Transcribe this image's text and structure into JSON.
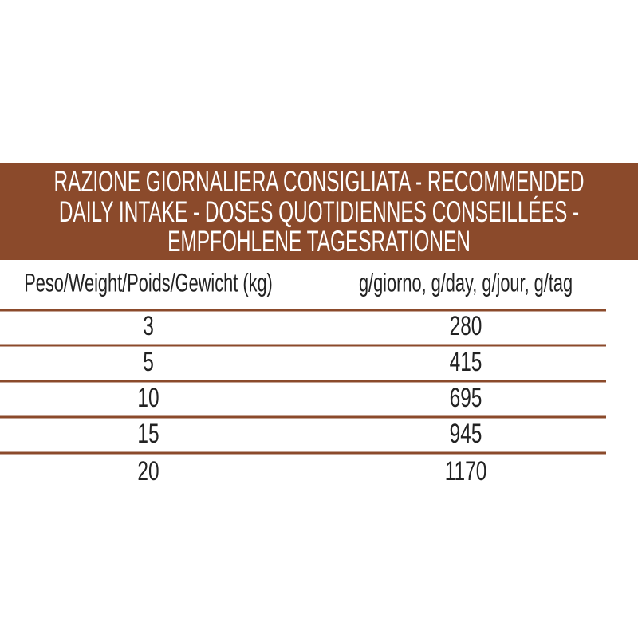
{
  "header": {
    "title_lines": [
      "RAZIONE GIORNALIERA CONSIGLIATA - RECOMMENDED",
      "DAILY INTAKE - DOSES QUOTIDIENNES CONSEILLÉES -",
      "EMPFOHLENE TAGESRATIONEN"
    ]
  },
  "table": {
    "columns": [
      "Peso/Weight/Poids/Gewicht (kg)",
      "g/giorno, g/day, g/jour, g/tag"
    ],
    "rows": [
      [
        "3",
        "280"
      ],
      [
        "5",
        "415"
      ],
      [
        "10",
        "695"
      ],
      [
        "15",
        "945"
      ],
      [
        "20",
        "1170"
      ]
    ]
  }
}
